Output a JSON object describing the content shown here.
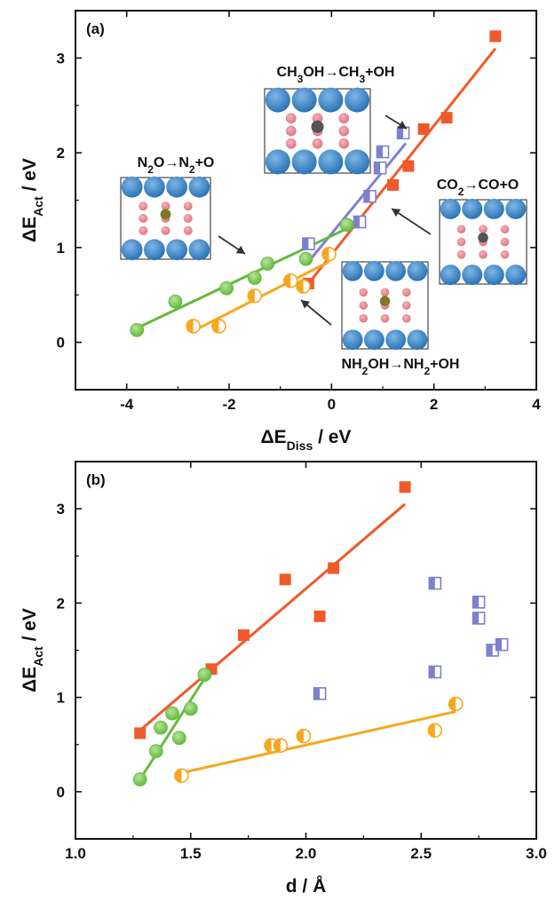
{
  "colors": {
    "orange_red": "#f05a2a",
    "purple": "#7f7fd0",
    "green": "#64bb3e",
    "yellow_orange": "#f7a71f",
    "atom_blue": "#2a74b6",
    "atom_pink": "#e0757f",
    "atom_olive": "#7a7a2a",
    "atom_gray": "#555555",
    "atom_white": "#ffffff"
  },
  "chart_data": [
    {
      "type": "scatter",
      "panel": "(a)",
      "xlabel_main": "ΔE",
      "xlabel_sub": "Diss",
      "xlabel_unit": " / eV",
      "ylabel_main": "ΔE",
      "ylabel_sub": "Act",
      "ylabel_unit": " / eV",
      "xlim": [
        -5,
        4
      ],
      "ylim": [
        -0.5,
        3.5
      ],
      "xticks": [
        -4,
        -2,
        0,
        2,
        4
      ],
      "yticks": [
        0,
        1,
        2,
        3
      ],
      "xtick_labels": [
        "-4",
        "-2",
        "0",
        "2",
        "4"
      ],
      "ytick_labels": [
        "0",
        "1",
        "2",
        "3"
      ],
      "annotations": [
        {
          "parts": [
            [
              "CH",
              ""
            ],
            [
              "3",
              "sub"
            ],
            [
              "OH→CH",
              ""
            ],
            [
              "3",
              "sub"
            ],
            [
              "+OH",
              ""
            ]
          ]
        },
        {
          "parts": [
            [
              "N",
              ""
            ],
            [
              "2",
              "sub"
            ],
            [
              "O→N",
              ""
            ],
            [
              "2",
              "sub"
            ],
            [
              "+O",
              ""
            ]
          ]
        },
        {
          "parts": [
            [
              "CO",
              ""
            ],
            [
              "2",
              "sub"
            ],
            [
              "→CO+O",
              ""
            ]
          ]
        },
        {
          "parts": [
            [
              "NH",
              ""
            ],
            [
              "2",
              "sub"
            ],
            [
              "OH→NH",
              ""
            ],
            [
              "2",
              "sub"
            ],
            [
              "+OH",
              ""
            ]
          ]
        }
      ],
      "series": [
        {
          "color_key": "orange_red",
          "marker": "square-filled",
          "x": [
            -0.45,
            1.2,
            1.5,
            1.8,
            2.25,
            3.2
          ],
          "y": [
            0.62,
            1.66,
            1.86,
            2.25,
            2.37,
            3.23
          ],
          "fit": {
            "x": [
              -0.45,
              3.2
            ],
            "y": [
              0.62,
              3.1
            ]
          }
        },
        {
          "color_key": "purple",
          "marker": "square-half",
          "x": [
            -0.45,
            0.55,
            0.75,
            0.95,
            1.0,
            1.4
          ],
          "y": [
            1.04,
            1.27,
            1.54,
            1.84,
            2.01,
            2.21
          ],
          "fit": {
            "x": [
              -0.45,
              1.45
            ],
            "y": [
              0.85,
              2.1
            ]
          }
        },
        {
          "color_key": "green",
          "marker": "circle-shaded",
          "x": [
            -3.8,
            -3.05,
            -2.05,
            -1.5,
            -1.25,
            -0.5,
            0.3
          ],
          "y": [
            0.13,
            0.43,
            0.57,
            0.68,
            0.83,
            0.88,
            1.24
          ],
          "fit": {
            "x": [
              -3.8,
              0.3
            ],
            "y": [
              0.15,
              1.2
            ]
          }
        },
        {
          "color_key": "yellow_orange",
          "marker": "circle-half",
          "x": [
            -2.7,
            -2.2,
            -1.5,
            -0.8,
            -0.55,
            -0.05
          ],
          "y": [
            0.17,
            0.17,
            0.49,
            0.65,
            0.59,
            0.93
          ],
          "fit": {
            "x": [
              -2.7,
              -0.05
            ],
            "y": [
              0.12,
              0.85
            ]
          }
        }
      ]
    },
    {
      "type": "scatter",
      "panel": "(b)",
      "xlabel_main": "d / Å",
      "ylabel_main": "ΔE",
      "ylabel_sub": "Act",
      "ylabel_unit": " / eV",
      "xlim": [
        1.0,
        3.0
      ],
      "ylim": [
        -0.5,
        3.5
      ],
      "xticks": [
        1.0,
        1.5,
        2.0,
        2.5,
        3.0
      ],
      "yticks": [
        0,
        1,
        2,
        3
      ],
      "xtick_labels": [
        "1.0",
        "1.5",
        "2.0",
        "2.5",
        "3.0"
      ],
      "ytick_labels": [
        "0",
        "1",
        "2",
        "3"
      ],
      "series": [
        {
          "color_key": "orange_red",
          "marker": "square-filled",
          "x": [
            1.28,
            1.59,
            1.73,
            1.91,
            2.06,
            2.12,
            2.43
          ],
          "y": [
            0.62,
            1.3,
            1.66,
            2.25,
            1.86,
            2.37,
            3.23
          ],
          "fit": {
            "x": [
              1.28,
              2.43
            ],
            "y": [
              0.65,
              3.05
            ]
          }
        },
        {
          "color_key": "purple",
          "marker": "square-half",
          "x": [
            2.06,
            2.56,
            2.56,
            2.75,
            2.75,
            2.81,
            2.85
          ],
          "y": [
            1.04,
            1.27,
            2.21,
            1.84,
            2.01,
            1.5,
            1.56
          ],
          "fit": null
        },
        {
          "color_key": "green",
          "marker": "circle-shaded",
          "x": [
            1.28,
            1.35,
            1.37,
            1.42,
            1.45,
            1.5,
            1.56
          ],
          "y": [
            0.13,
            0.43,
            0.68,
            0.83,
            0.57,
            0.88,
            1.24
          ],
          "fit": {
            "x": [
              1.28,
              1.57
            ],
            "y": [
              0.13,
              1.24
            ]
          }
        },
        {
          "color_key": "yellow_orange",
          "marker": "circle-half",
          "x": [
            1.46,
            1.85,
            1.89,
            1.99,
            2.56,
            2.65
          ],
          "y": [
            0.17,
            0.49,
            0.49,
            0.59,
            0.65,
            0.93
          ],
          "fit": {
            "x": [
              1.46,
              2.65
            ],
            "y": [
              0.2,
              0.85
            ]
          }
        }
      ]
    }
  ]
}
